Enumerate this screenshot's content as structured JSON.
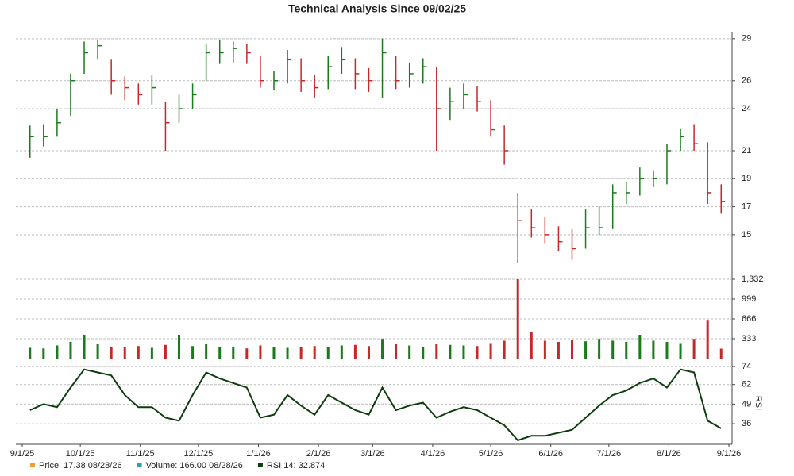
{
  "chart_data": {
    "type": "ohlc",
    "title": "Technical Analysis Since 09/02/25",
    "x": [
      "9/5/25",
      "9/12/25",
      "9/19/25",
      "9/26/25",
      "10/3/25",
      "10/10/25",
      "10/17/25",
      "10/24/25",
      "10/31/25",
      "11/7/25",
      "11/14/25",
      "11/21/25",
      "11/28/25",
      "12/5/25",
      "12/12/25",
      "12/19/25",
      "12/26/25",
      "1/2/26",
      "1/9/26",
      "1/16/26",
      "1/23/26",
      "1/30/26",
      "2/6/26",
      "2/13/26",
      "2/20/26",
      "2/27/26",
      "3/6/26",
      "3/13/26",
      "3/20/26",
      "3/27/26",
      "4/3/26",
      "4/10/26",
      "4/17/26",
      "4/24/26",
      "5/1/26",
      "5/8/26",
      "5/15/26",
      "5/22/26",
      "5/29/26",
      "6/5/26",
      "6/12/26",
      "6/19/26",
      "6/26/26",
      "7/3/26",
      "7/10/26",
      "7/17/26",
      "7/24/26",
      "7/31/26",
      "8/7/26",
      "8/14/26",
      "8/21/26",
      "8/28/26"
    ],
    "high": [
      22.8,
      22.9,
      24,
      26.5,
      28.8,
      28.9,
      27.5,
      26.3,
      25.8,
      26.4,
      24.5,
      25,
      25.8,
      28.6,
      28.9,
      28.8,
      28.6,
      27.8,
      26.7,
      28.2,
      27.6,
      26.4,
      27.8,
      28.4,
      27.6,
      26.9,
      29,
      27.8,
      27.3,
      27.6,
      27,
      25.5,
      25.8,
      25.6,
      24.6,
      22.8,
      18,
      16.8,
      16.3,
      15.6,
      15.4,
      16.8,
      17,
      18.6,
      18.8,
      19.8,
      19.6,
      21.5,
      22.6,
      22.9,
      21.6,
      18.6
    ],
    "low": [
      20.5,
      21.3,
      22,
      23.5,
      26.5,
      27.5,
      25,
      24.6,
      24.3,
      24.3,
      21,
      23,
      24,
      26,
      27.2,
      27.3,
      27.2,
      25.5,
      25.3,
      25.8,
      25.2,
      24.8,
      25.4,
      26.5,
      25.4,
      25.2,
      24.8,
      25.4,
      25.5,
      25.8,
      21,
      23.2,
      24,
      23.8,
      22,
      20,
      13,
      14.8,
      14.4,
      13.8,
      13.2,
      14,
      15,
      15.4,
      17.2,
      17.8,
      18.4,
      18.6,
      21,
      21,
      17.2,
      16.5
    ],
    "close": [
      22,
      22,
      23,
      26,
      28,
      28.5,
      26,
      25.5,
      25,
      25.5,
      23,
      24,
      25,
      28,
      28,
      28.3,
      28,
      26,
      26,
      27.5,
      26,
      25.5,
      27,
      27.5,
      26.5,
      26,
      28,
      26,
      26.5,
      27,
      24,
      24.5,
      25,
      24.5,
      22.5,
      21,
      16,
      15.5,
      15,
      14.5,
      14,
      15.5,
      15.5,
      18,
      18,
      19,
      19,
      21,
      22,
      21.5,
      18,
      17.38
    ],
    "up_color": "#1b7a1b",
    "down_color": "#c62828",
    "ylim": [
      12.5,
      29.5
    ],
    "yticks": [
      15,
      17,
      19,
      21,
      24,
      26,
      29
    ],
    "xlim": [
      "9/1/25",
      "9/1/26"
    ],
    "xticks": [
      "9/1/25",
      "10/1/25",
      "11/1/25",
      "12/1/25",
      "1/1/26",
      "2/1/26",
      "3/1/26",
      "4/1/26",
      "5/1/26",
      "6/1/26",
      "7/1/26",
      "8/1/26",
      "9/1/26"
    ],
    "grid": true,
    "volume": {
      "values": [
        180,
        170,
        220,
        280,
        400,
        250,
        200,
        190,
        210,
        180,
        230,
        400,
        210,
        250,
        200,
        190,
        170,
        220,
        200,
        180,
        190,
        210,
        200,
        220,
        230,
        210,
        330,
        250,
        220,
        200,
        240,
        230,
        220,
        210,
        260,
        300,
        1332,
        450,
        300,
        280,
        310,
        290,
        330,
        300,
        280,
        400,
        300,
        280,
        260,
        330,
        650,
        166
      ],
      "ylim": [
        0,
        1332
      ],
      "yticks": [
        333,
        666,
        999,
        {
          "value": 1332,
          "label": "1,332"
        }
      ]
    },
    "rsi": {
      "name": "RSI",
      "color": "#0d3d0d",
      "values": [
        45,
        49,
        47,
        60,
        72,
        70,
        68,
        55,
        47,
        47,
        40,
        38,
        55,
        70,
        66,
        63,
        60,
        40,
        42,
        55,
        48,
        42,
        55,
        50,
        45,
        42,
        60,
        45,
        48,
        50,
        40,
        44,
        47,
        45,
        40,
        35,
        25,
        28,
        28,
        30,
        32,
        40,
        48,
        55,
        58,
        63,
        66,
        60,
        72,
        70,
        38,
        32.874
      ],
      "ylim": [
        25,
        75
      ],
      "yticks": [
        36,
        49,
        62,
        74
      ]
    },
    "legend": [
      {
        "text": "Price: 17.38  08/28/26",
        "color": "#f0a030"
      },
      {
        "text": "Volume: 166.00  08/28/26",
        "color": "#30a0b0"
      },
      {
        "text": "RSI 14: 32.874",
        "color": "#0d3d0d"
      }
    ]
  }
}
